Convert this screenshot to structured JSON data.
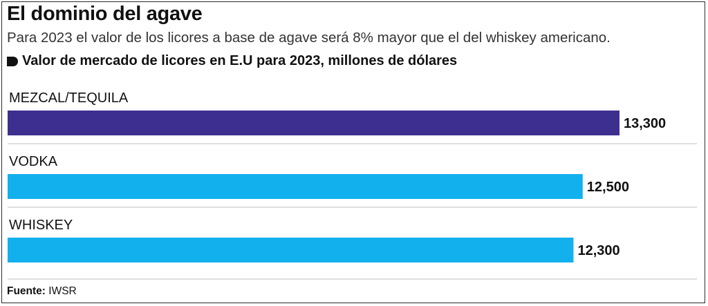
{
  "header": {
    "title": "El dominio del agave",
    "subtitle": "Para 2023 el valor de los licores a base de agave será 8% mayor que el del whiskey americano.",
    "series_label": "Valor de mercado de licores en E.U para 2023, millones de dólares"
  },
  "footer": {
    "source_key": "Fuente:",
    "source_value": "IWSR"
  },
  "colors": {
    "mezcal": "#3d2f8f",
    "vodka": "#12b0ec",
    "whiskey": "#12b0ec",
    "divider": "#bdbdbd"
  },
  "chart_data": {
    "type": "bar",
    "orientation": "horizontal",
    "categories": [
      "MEZCAL/TEQUILA",
      "VODKA",
      "WHISKEY"
    ],
    "values": [
      13300,
      12500,
      12300
    ],
    "value_labels": [
      "13,300",
      "12,500",
      "12,300"
    ],
    "title": "El dominio del agave",
    "xlabel": "",
    "ylabel": "",
    "unit": "millones de dólares",
    "grid": false,
    "legend": "none"
  }
}
